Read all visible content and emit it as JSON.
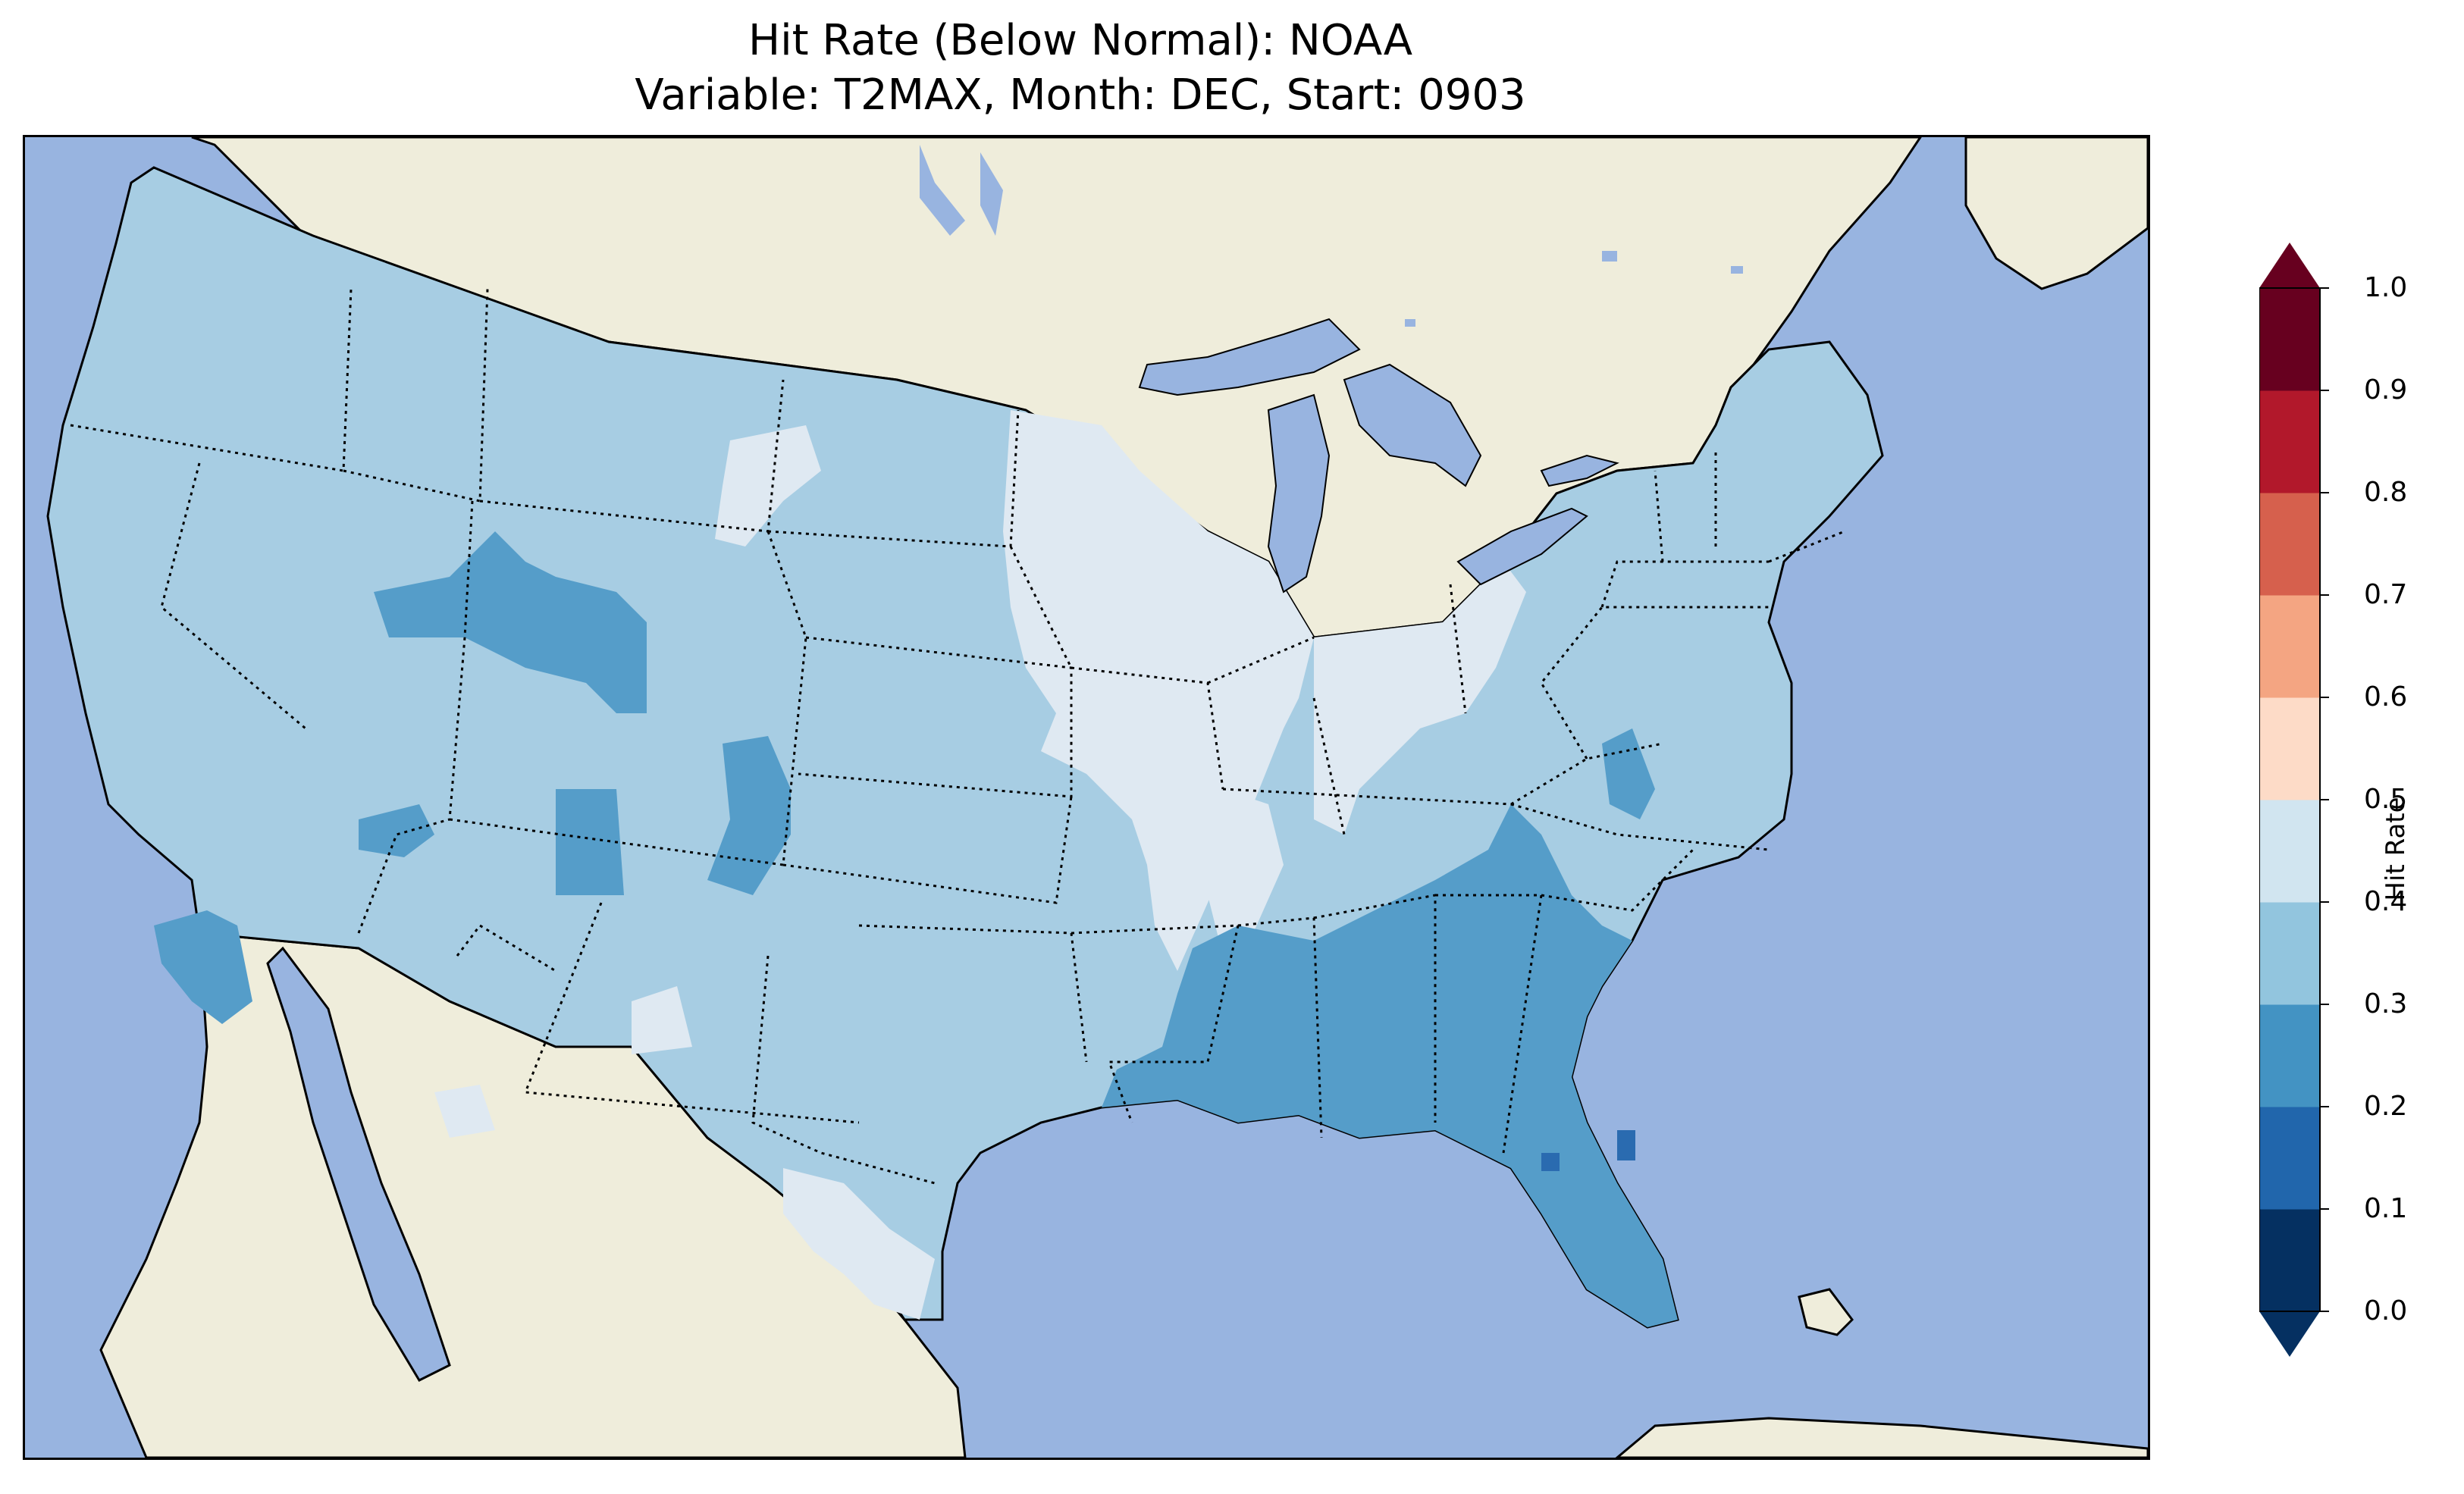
{
  "title": {
    "line1": "Hit Rate (Below Normal): NOAA",
    "line2": "Variable: T2MAX, Month: DEC, Start: 0903"
  },
  "map": {
    "region": "Contiguous United States",
    "projection": "Lambert Conformal",
    "ocean_color": "#98b4e0",
    "land_color": "#efeddb",
    "coastline_color": "#000000",
    "state_borders": "dotted",
    "features": [
      "coastlines",
      "state borders",
      "country borders",
      "lakes"
    ]
  },
  "colorbar": {
    "label": "Hit Rate",
    "ticks": [
      "0.0",
      "0.1",
      "0.2",
      "0.3",
      "0.4",
      "0.5",
      "0.6",
      "0.7",
      "0.8",
      "0.9",
      "1.0"
    ],
    "colors": [
      "#053061",
      "#2166ac",
      "#4393c3",
      "#92c5de",
      "#d1e5f0",
      "#fddbc7",
      "#f4a582",
      "#d6604d",
      "#b2182b",
      "#67001f"
    ],
    "extend": "both",
    "under_color": "#053061",
    "over_color": "#67001f"
  },
  "regions": [
    {
      "name": "West / Great Plains",
      "hit_rate_range": "0.3–0.4",
      "color": "#a7cde3"
    },
    {
      "name": "Upper Midwest / Great Lakes",
      "hit_rate_range": "0.4–0.5",
      "color": "#dfe9f2"
    },
    {
      "name": "West Texas",
      "hit_rate_range": "0.4–0.5",
      "color": "#dfe9f2"
    },
    {
      "name": "Southeast US",
      "hit_rate_range": "0.2–0.3",
      "color": "#559dc9"
    },
    {
      "name": "Colorado / Wyoming mountains",
      "hit_rate_range": "0.2–0.3",
      "color": "#559dc9"
    },
    {
      "name": "Southern California",
      "hit_rate_range": "0.2–0.3",
      "color": "#559dc9"
    },
    {
      "name": "Central Florida spots",
      "hit_rate_range": "0.1–0.2",
      "color": "#2a6bb0"
    }
  ]
}
